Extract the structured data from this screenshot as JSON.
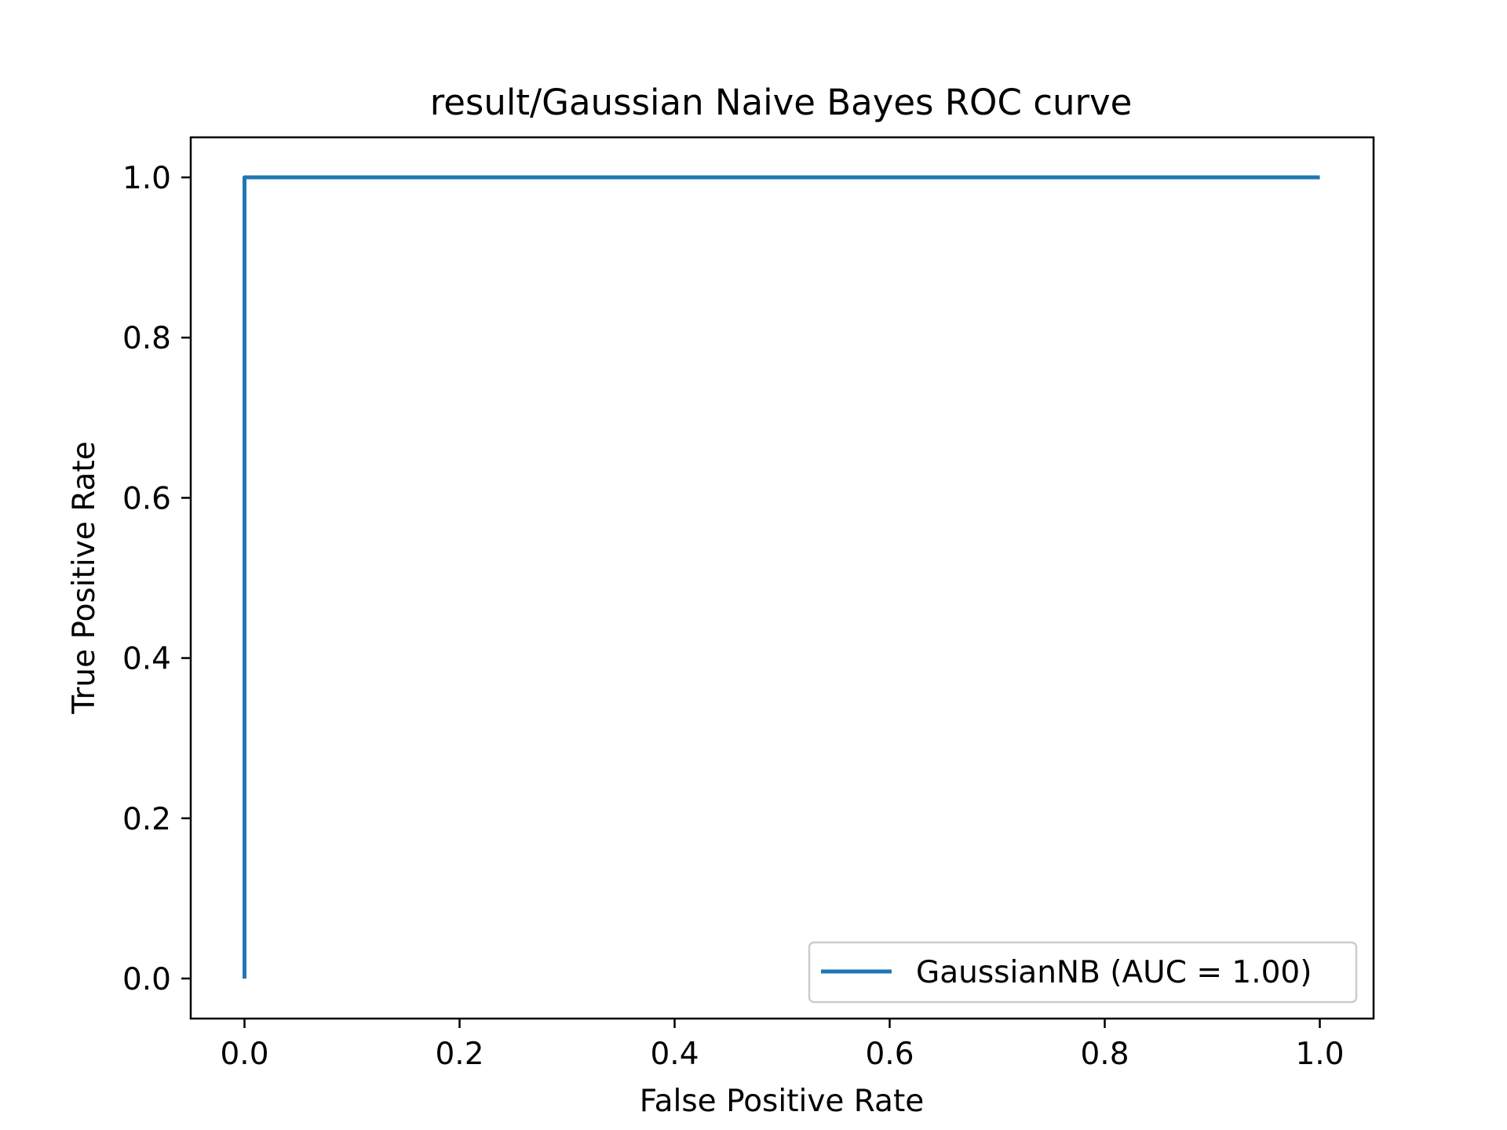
{
  "chart_data": {
    "type": "line",
    "title": "result/Gaussian Naive Bayes ROC curve",
    "xlabel": "False Positive Rate",
    "ylabel": "True Positive Rate",
    "xlim": [
      -0.05,
      1.05
    ],
    "ylim": [
      -0.05,
      1.05
    ],
    "xticks": [
      0.0,
      0.2,
      0.4,
      0.6,
      0.8,
      1.0
    ],
    "xtick_labels": [
      "0.0",
      "0.2",
      "0.4",
      "0.6",
      "0.8",
      "1.0"
    ],
    "yticks": [
      0.0,
      0.2,
      0.4,
      0.6,
      0.8,
      1.0
    ],
    "ytick_labels": [
      "0.0",
      "0.2",
      "0.4",
      "0.6",
      "0.8",
      "1.0"
    ],
    "grid": false,
    "legend_position": "lower right",
    "series": [
      {
        "name": "GaussianNB (AUC = 1.00)",
        "color": "#1f77b4",
        "x": [
          0.0,
          0.0,
          1.0
        ],
        "y": [
          0.0,
          1.0,
          1.0
        ]
      }
    ]
  }
}
